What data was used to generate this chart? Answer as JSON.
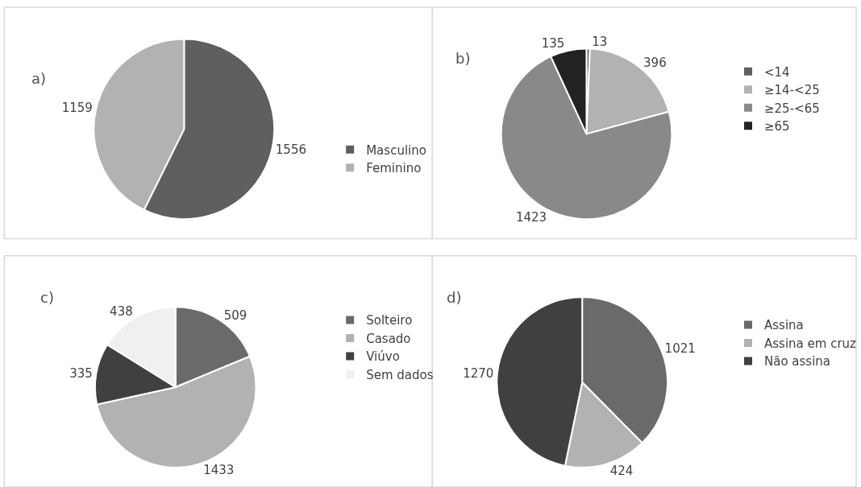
{
  "chart_data": [
    {
      "type": "pie",
      "title": "a)",
      "categories": [
        "Masculino",
        "Feminino"
      ],
      "values": [
        1556,
        1159
      ],
      "colors": [
        "#5f5f5f",
        "#b2b2b2"
      ],
      "data_labels": true,
      "legend": "right"
    },
    {
      "type": "pie",
      "title": "b)",
      "categories": [
        "<14",
        "≥14-<25",
        "≥25-<65",
        "≥65"
      ],
      "values": [
        13,
        396,
        1423,
        135
      ],
      "colors": [
        "#5f5f5f",
        "#b2b2b2",
        "#898989",
        "#222222"
      ],
      "data_labels": true,
      "legend": "right"
    },
    {
      "type": "pie",
      "title": "c)",
      "categories": [
        "Solteiro",
        "Casado",
        "Viúvo",
        "Sem dados"
      ],
      "values": [
        509,
        1433,
        335,
        438
      ],
      "colors": [
        "#6a6a6a",
        "#b2b2b2",
        "#404040",
        "#f0f0f0"
      ],
      "data_labels": true,
      "legend": "right"
    },
    {
      "type": "pie",
      "title": "d)",
      "categories": [
        "Assina",
        "Assina em cruz",
        "Não assina"
      ],
      "values": [
        1021,
        424,
        1270
      ],
      "colors": [
        "#6a6a6a",
        "#b2b2b2",
        "#404040"
      ],
      "data_labels": true,
      "legend": "right"
    }
  ]
}
